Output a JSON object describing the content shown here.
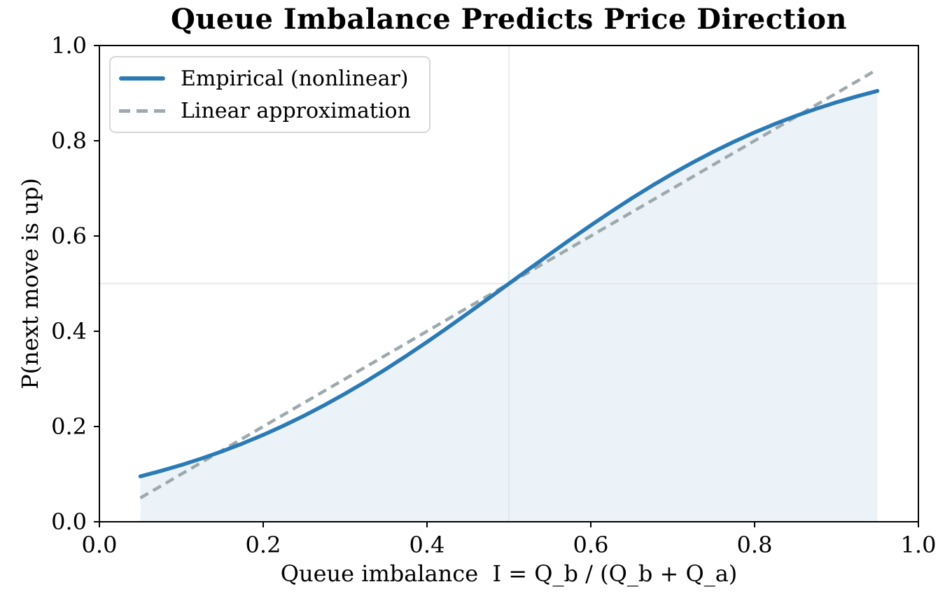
{
  "chart_data": {
    "type": "line",
    "title": "Queue Imbalance Predicts Price Direction",
    "xlabel": "Queue imbalance  I = Q_b / (Q_b + Q_a)",
    "ylabel": "P(next move is up)",
    "xlim": [
      0.0,
      1.0
    ],
    "ylim": [
      0.0,
      1.0
    ],
    "xticks": {
      "values": [
        0.0,
        0.2,
        0.4,
        0.6,
        0.8,
        1.0
      ],
      "labels": [
        "0.0",
        "0.2",
        "0.4",
        "0.6",
        "0.8",
        "1.0"
      ]
    },
    "yticks": {
      "values": [
        0.0,
        0.2,
        0.4,
        0.6,
        0.8,
        1.0
      ],
      "labels": [
        "0.0",
        "0.2",
        "0.4",
        "0.6",
        "0.8",
        "1.0"
      ]
    },
    "grid": {
      "vlines_x": [
        0.5
      ],
      "hlines_y": [
        0.5
      ],
      "color": "#dfe3e6"
    },
    "legend": {
      "position": "upper left"
    },
    "axes": {
      "frame_color": "#000000",
      "tick_color": "#000000",
      "background": "#ffffff"
    },
    "series": [
      {
        "name": "Empirical (nonlinear)",
        "style": "solid",
        "color": "#2b7ab5",
        "line_width": 5.5,
        "fill_below": true,
        "fill_color": "rgba(43,122,181,0.09)",
        "x": [
          0.05,
          0.075,
          0.1,
          0.125,
          0.15,
          0.175,
          0.2,
          0.225,
          0.25,
          0.275,
          0.3,
          0.325,
          0.35,
          0.375,
          0.4,
          0.425,
          0.45,
          0.475,
          0.5,
          0.525,
          0.55,
          0.575,
          0.6,
          0.625,
          0.65,
          0.675,
          0.7,
          0.725,
          0.75,
          0.775,
          0.8,
          0.825,
          0.85,
          0.875,
          0.9,
          0.925,
          0.95
        ],
        "y": [
          0.0953,
          0.1067,
          0.1192,
          0.133,
          0.148,
          0.1645,
          0.1824,
          0.2018,
          0.2227,
          0.2451,
          0.2689,
          0.2942,
          0.3208,
          0.3487,
          0.3775,
          0.4073,
          0.4378,
          0.4688,
          0.5,
          0.5312,
          0.5622,
          0.5927,
          0.6225,
          0.6513,
          0.6792,
          0.7058,
          0.7311,
          0.7549,
          0.7773,
          0.7982,
          0.8176,
          0.8355,
          0.852,
          0.867,
          0.8808,
          0.8933,
          0.9047
        ]
      },
      {
        "name": "Linear approximation",
        "style": "dashed",
        "color": "#9da9ac",
        "line_width": 4.5,
        "dash_pattern": "13 8",
        "x": [
          0.05,
          0.95
        ],
        "y": [
          0.05,
          0.95
        ]
      }
    ]
  }
}
